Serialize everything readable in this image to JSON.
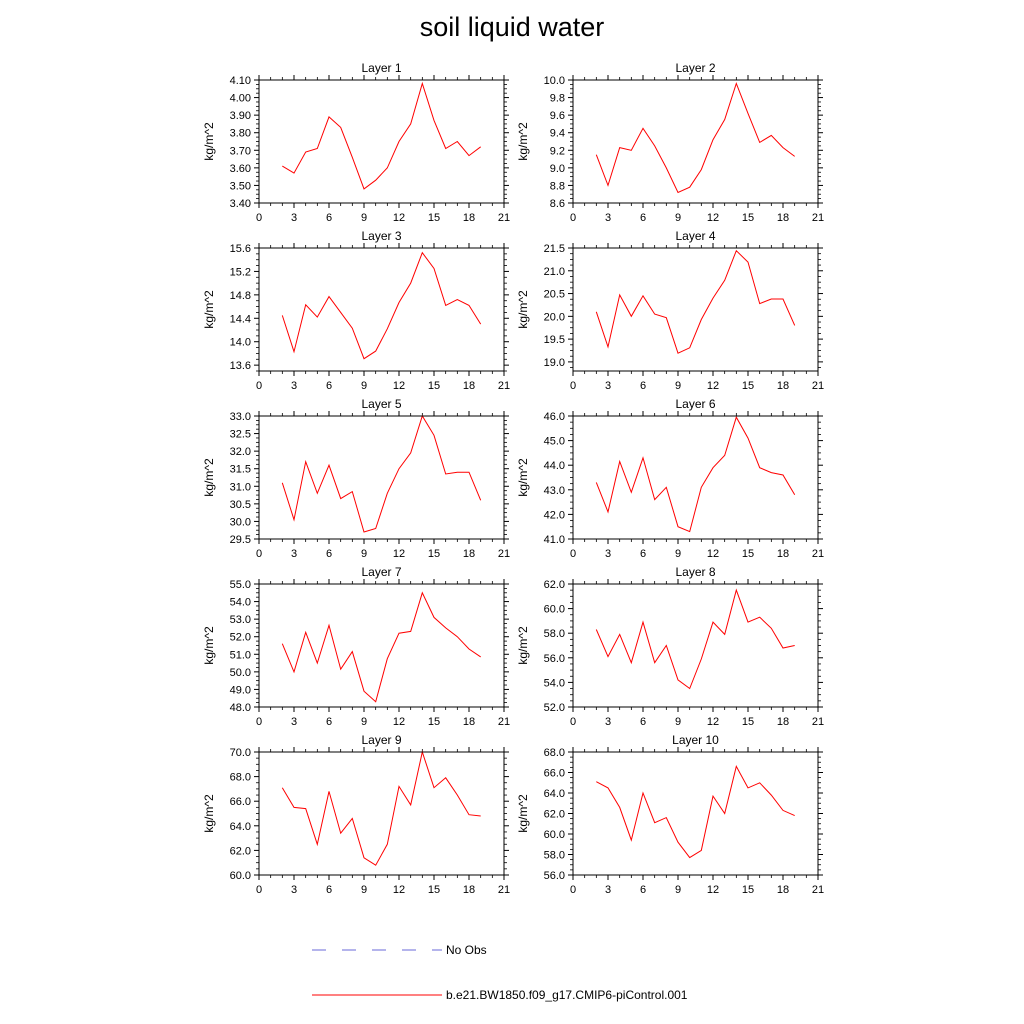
{
  "title": "soil liquid water",
  "legend": {
    "position": "bottom-center",
    "entries": [
      {
        "label": "No Obs",
        "color": "#6a6ad8",
        "style": "dashed"
      },
      {
        "label": "b.e21.BW1850.f09_g17.CMIP6-piControl.001",
        "color": "#ff0000",
        "style": "solid"
      }
    ]
  },
  "chart_data": [
    {
      "type": "line",
      "title": "Layer 1",
      "ylabel": "kg/m^2",
      "xlim": [
        0,
        21
      ],
      "xticks": [
        0,
        3,
        6,
        9,
        12,
        15,
        18,
        21
      ],
      "ylim": [
        3.4,
        4.1
      ],
      "yticks": [
        "3.40",
        "3.50",
        "3.60",
        "3.70",
        "3.80",
        "3.90",
        "4.00",
        "4.10"
      ],
      "x": [
        2,
        3,
        4,
        5,
        6,
        7,
        8,
        9,
        10,
        11,
        12,
        13,
        14,
        15,
        16,
        17,
        18,
        19
      ],
      "series": [
        {
          "color": "#ff0000",
          "values": [
            3.61,
            3.57,
            3.69,
            3.71,
            3.89,
            3.83,
            3.66,
            3.48,
            3.53,
            3.6,
            3.75,
            3.85,
            4.08,
            3.87,
            3.71,
            3.75,
            3.67,
            3.72
          ]
        }
      ]
    },
    {
      "type": "line",
      "title": "Layer 2",
      "ylabel": "kg/m^2",
      "xlim": [
        0,
        21
      ],
      "xticks": [
        0,
        3,
        6,
        9,
        12,
        15,
        18,
        21
      ],
      "ylim": [
        8.6,
        10.0
      ],
      "yticks": [
        "8.6",
        "8.8",
        "9.0",
        "9.2",
        "9.4",
        "9.6",
        "9.8",
        "10.0"
      ],
      "x": [
        2,
        3,
        4,
        5,
        6,
        7,
        8,
        9,
        10,
        11,
        12,
        13,
        14,
        15,
        16,
        17,
        18,
        19
      ],
      "series": [
        {
          "color": "#ff0000",
          "values": [
            9.15,
            8.8,
            9.23,
            9.2,
            9.45,
            9.25,
            9.0,
            8.72,
            8.78,
            8.98,
            9.32,
            9.55,
            9.96,
            9.62,
            9.29,
            9.37,
            9.23,
            9.13
          ]
        }
      ]
    },
    {
      "type": "line",
      "title": "Layer 3",
      "ylabel": "kg/m^2",
      "xlim": [
        0,
        21
      ],
      "xticks": [
        0,
        3,
        6,
        9,
        12,
        15,
        18,
        21
      ],
      "ylim": [
        13.5,
        15.6
      ],
      "yticks": [
        "13.6",
        "14.0",
        "14.4",
        "14.8",
        "15.2",
        "15.6"
      ],
      "x": [
        2,
        3,
        4,
        5,
        6,
        7,
        8,
        9,
        10,
        11,
        12,
        13,
        14,
        15,
        16,
        17,
        18,
        19
      ],
      "series": [
        {
          "color": "#ff0000",
          "values": [
            14.45,
            13.83,
            14.63,
            14.42,
            14.77,
            14.5,
            14.23,
            13.71,
            13.84,
            14.22,
            14.67,
            15.0,
            15.52,
            15.25,
            14.62,
            14.72,
            14.62,
            14.3
          ]
        }
      ]
    },
    {
      "type": "line",
      "title": "Layer 4",
      "ylabel": "kg/m^2",
      "xlim": [
        0,
        21
      ],
      "xticks": [
        0,
        3,
        6,
        9,
        12,
        15,
        18,
        21
      ],
      "ylim": [
        18.8,
        21.5
      ],
      "yticks": [
        "19.0",
        "19.5",
        "20.0",
        "20.5",
        "21.0",
        "21.5"
      ],
      "x": [
        2,
        3,
        4,
        5,
        6,
        7,
        8,
        9,
        10,
        11,
        12,
        13,
        14,
        15,
        16,
        17,
        18,
        19
      ],
      "series": [
        {
          "color": "#ff0000",
          "values": [
            20.1,
            19.33,
            20.47,
            20.0,
            20.45,
            20.05,
            19.97,
            19.19,
            19.31,
            19.93,
            20.4,
            20.79,
            21.44,
            21.19,
            20.28,
            20.38,
            20.38,
            19.8
          ]
        }
      ]
    },
    {
      "type": "line",
      "title": "Layer 5",
      "ylabel": "kg/m^2",
      "xlim": [
        0,
        21
      ],
      "xticks": [
        0,
        3,
        6,
        9,
        12,
        15,
        18,
        21
      ],
      "ylim": [
        29.5,
        33.0
      ],
      "yticks": [
        "29.5",
        "30.0",
        "30.5",
        "31.0",
        "31.5",
        "32.0",
        "32.5",
        "33.0"
      ],
      "x": [
        2,
        3,
        4,
        5,
        6,
        7,
        8,
        9,
        10,
        11,
        12,
        13,
        14,
        15,
        16,
        17,
        18,
        19
      ],
      "series": [
        {
          "color": "#ff0000",
          "values": [
            31.1,
            30.05,
            31.7,
            30.8,
            31.6,
            30.65,
            30.85,
            29.7,
            29.8,
            30.8,
            31.5,
            31.95,
            33.0,
            32.45,
            31.35,
            31.4,
            31.4,
            30.6
          ]
        }
      ]
    },
    {
      "type": "line",
      "title": "Layer 6",
      "ylabel": "kg/m^2",
      "xlim": [
        0,
        21
      ],
      "xticks": [
        0,
        3,
        6,
        9,
        12,
        15,
        18,
        21
      ],
      "ylim": [
        41.0,
        46.0
      ],
      "yticks": [
        "41.0",
        "42.0",
        "43.0",
        "44.0",
        "45.0",
        "46.0"
      ],
      "x": [
        2,
        3,
        4,
        5,
        6,
        7,
        8,
        9,
        10,
        11,
        12,
        13,
        14,
        15,
        16,
        17,
        18,
        19
      ],
      "series": [
        {
          "color": "#ff0000",
          "values": [
            43.3,
            42.1,
            44.15,
            42.9,
            44.3,
            42.6,
            43.1,
            41.5,
            41.3,
            43.1,
            43.9,
            44.4,
            45.95,
            45.1,
            43.9,
            43.7,
            43.6,
            42.8
          ]
        }
      ]
    },
    {
      "type": "line",
      "title": "Layer 7",
      "ylabel": "kg/m^2",
      "xlim": [
        0,
        21
      ],
      "xticks": [
        0,
        3,
        6,
        9,
        12,
        15,
        18,
        21
      ],
      "ylim": [
        48.0,
        55.0
      ],
      "yticks": [
        "48.0",
        "49.0",
        "50.0",
        "51.0",
        "52.0",
        "53.0",
        "54.0",
        "55.0"
      ],
      "x": [
        2,
        3,
        4,
        5,
        6,
        7,
        8,
        9,
        10,
        11,
        12,
        13,
        14,
        15,
        16,
        17,
        18,
        19
      ],
      "series": [
        {
          "color": "#ff0000",
          "values": [
            51.6,
            50.0,
            52.25,
            50.5,
            52.65,
            50.15,
            51.15,
            48.9,
            48.3,
            50.75,
            52.2,
            52.3,
            54.5,
            53.1,
            52.5,
            52.0,
            51.3,
            50.85
          ]
        }
      ]
    },
    {
      "type": "line",
      "title": "Layer 8",
      "ylabel": "kg/m^2",
      "xlim": [
        0,
        21
      ],
      "xticks": [
        0,
        3,
        6,
        9,
        12,
        15,
        18,
        21
      ],
      "ylim": [
        52.0,
        62.0
      ],
      "yticks": [
        "52.0",
        "54.0",
        "56.0",
        "58.0",
        "60.0",
        "62.0"
      ],
      "x": [
        2,
        3,
        4,
        5,
        6,
        7,
        8,
        9,
        10,
        11,
        12,
        13,
        14,
        15,
        16,
        17,
        18,
        19
      ],
      "series": [
        {
          "color": "#ff0000",
          "values": [
            58.3,
            56.1,
            57.9,
            55.6,
            58.9,
            55.6,
            57.0,
            54.2,
            53.5,
            55.9,
            58.9,
            57.9,
            61.5,
            58.9,
            59.3,
            58.4,
            56.8,
            57.0
          ]
        }
      ]
    },
    {
      "type": "line",
      "title": "Layer 9",
      "ylabel": "kg/m^2",
      "xlim": [
        0,
        21
      ],
      "xticks": [
        0,
        3,
        6,
        9,
        12,
        15,
        18,
        21
      ],
      "ylim": [
        60.0,
        70.0
      ],
      "yticks": [
        "60.0",
        "62.0",
        "64.0",
        "66.0",
        "68.0",
        "70.0"
      ],
      "x": [
        2,
        3,
        4,
        5,
        6,
        7,
        8,
        9,
        10,
        11,
        12,
        13,
        14,
        15,
        16,
        17,
        18,
        19
      ],
      "series": [
        {
          "color": "#ff0000",
          "values": [
            67.1,
            65.5,
            65.4,
            62.5,
            66.8,
            63.4,
            64.6,
            61.4,
            60.8,
            62.5,
            67.2,
            65.7,
            70.0,
            67.1,
            67.9,
            66.5,
            64.9,
            64.8
          ]
        }
      ]
    },
    {
      "type": "line",
      "title": "Layer 10",
      "ylabel": "kg/m^2",
      "xlim": [
        0,
        21
      ],
      "xticks": [
        0,
        3,
        6,
        9,
        12,
        15,
        18,
        21
      ],
      "ylim": [
        56.0,
        68.0
      ],
      "yticks": [
        "56.0",
        "58.0",
        "60.0",
        "62.0",
        "64.0",
        "66.0",
        "68.0"
      ],
      "x": [
        2,
        3,
        4,
        5,
        6,
        7,
        8,
        9,
        10,
        11,
        12,
        13,
        14,
        15,
        16,
        17,
        18,
        19
      ],
      "series": [
        {
          "color": "#ff0000",
          "values": [
            65.1,
            64.5,
            62.6,
            59.4,
            64.0,
            61.1,
            61.6,
            59.2,
            57.7,
            58.4,
            63.7,
            62.0,
            66.6,
            64.5,
            65.0,
            63.8,
            62.3,
            61.8
          ]
        }
      ]
    }
  ]
}
